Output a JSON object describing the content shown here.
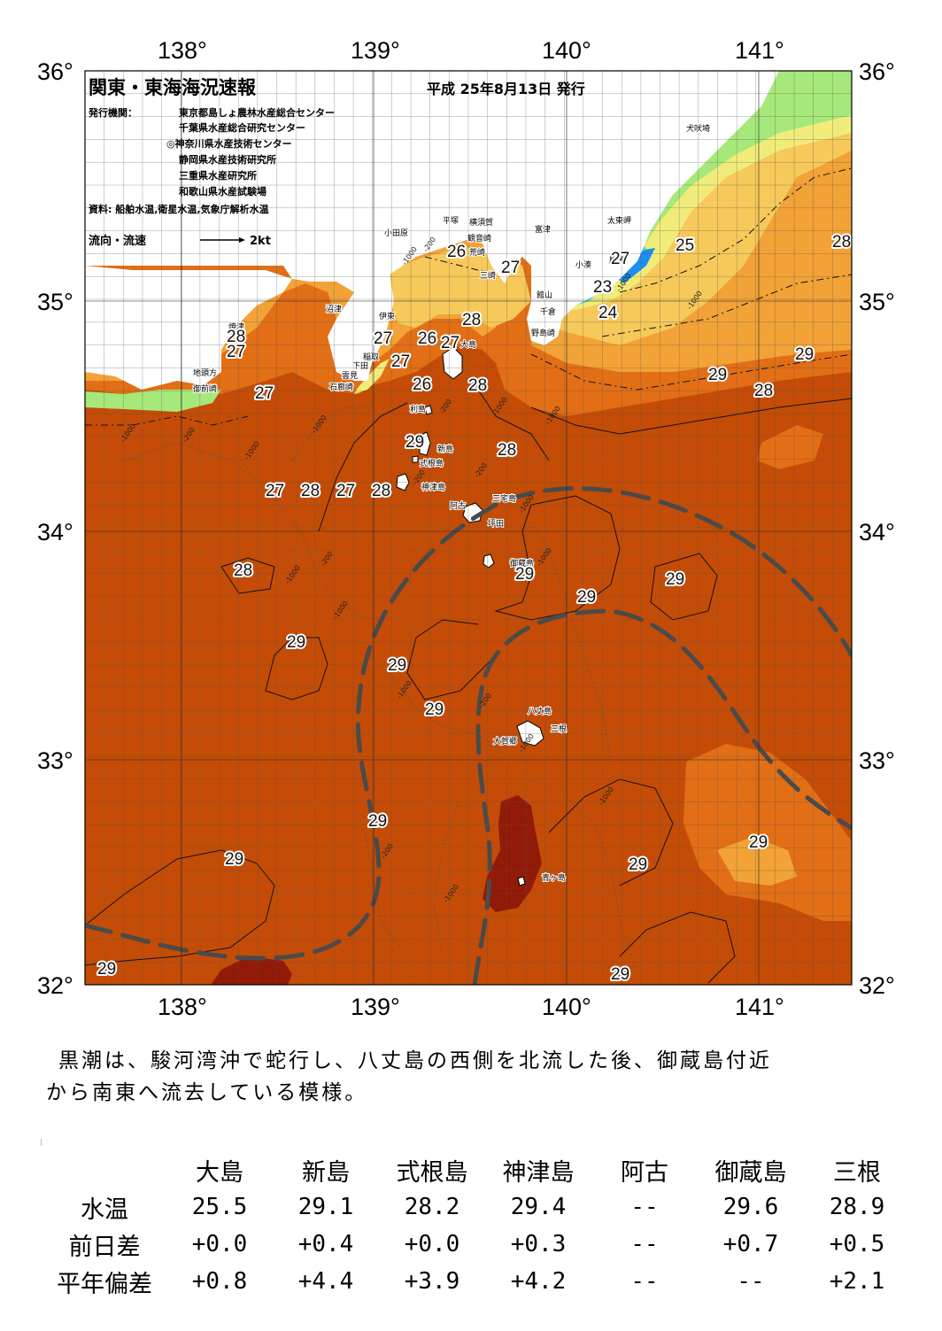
{
  "header": {
    "title": "関東・東海海況速報",
    "issue_date": "平成 25年8月13日 発行",
    "org_label": "発行機関：",
    "orgs": [
      "東京都島しょ農林水産総合センター",
      "千葉県水産総合研究センター",
      "◎神奈川県水産技術センター",
      "静岡県水産技術研究所",
      "三重県水産研究所",
      "和歌山県水産試験場"
    ],
    "source": "資料: 船舶水温,衛星水温,気象庁解析水温",
    "current_legend": "流向・流速",
    "current_scale": "2kt"
  },
  "map": {
    "lon_labels": [
      "138°",
      "139°",
      "140°",
      "141°"
    ],
    "lat_labels": [
      "36°",
      "35°",
      "34°",
      "33°",
      "32°"
    ],
    "colors": {
      "water_29": "#c44c06",
      "water_28": "#e26e15",
      "water_27": "#f2a236",
      "water_26": "#f6c95a",
      "water_25": "#f1ec7a",
      "water_24": "#a6e87a",
      "water_23": "#45d3d0",
      "water_22": "#1c8ff0",
      "water_30": "#921a08",
      "land": "#ffffff",
      "kuroshio_axis": "#4a4a4a"
    },
    "isotherm_labels": [
      "26",
      "27",
      "27",
      "23",
      "24",
      "25",
      "26",
      "27",
      "28",
      "27",
      "27",
      "26",
      "27",
      "28",
      "29",
      "28",
      "28",
      "29",
      "29",
      "29",
      "29",
      "29",
      "29",
      "29",
      "29",
      "29",
      "29",
      "29",
      "29",
      "29",
      "28",
      "29",
      "28",
      "27",
      "28",
      "27",
      "28",
      "27",
      "28"
    ],
    "depth_labels": [
      "-1000",
      "-200",
      "-1000",
      "-200",
      "-1000",
      "-1000",
      "-200",
      "-1000",
      "-200",
      "-1000",
      "-200",
      "-1000",
      "-200",
      "-1000",
      "-200",
      "-1000",
      "-1000",
      "-1000",
      "-1000",
      "-200",
      "-1000",
      "-1000",
      "-1000",
      "-1000"
    ],
    "places": [
      "犬吠埼",
      "太東岬",
      "小田原",
      "平塚",
      "横須賀",
      "観音崎",
      "富津",
      "荒崎",
      "三崎",
      "小湊",
      "勝浦",
      "館山",
      "千倉",
      "野島崎",
      "沼津",
      "伊東",
      "大島",
      "稲取",
      "下田",
      "雲見",
      "石廊崎",
      "焼津",
      "御前崎",
      "地頭方",
      "利島",
      "新島",
      "式根島",
      "神津島",
      "三宅島",
      "阿古",
      "坪田",
      "御蔵島",
      "八丈島",
      "三根",
      "大賀郷",
      "青ヶ島"
    ]
  },
  "summary": {
    "line1": "黒潮は、駿河湾沖で蛇行し、八丈島の西側を北流した後、御蔵島付近",
    "line2": "から南東へ流去している模様。"
  },
  "table": {
    "columns": [
      "大島",
      "新島",
      "式根島",
      "神津島",
      "阿古",
      "御蔵島",
      "三根"
    ],
    "rows": [
      {
        "label": "水温",
        "values": [
          "25.5",
          "29.1",
          "28.2",
          "29.4",
          "--",
          "29.6",
          "28.9"
        ]
      },
      {
        "label": "前日差",
        "values": [
          "+0.0",
          "+0.4",
          "+0.0",
          "+0.3",
          "--",
          "+0.7",
          "+0.5"
        ]
      },
      {
        "label": "平年偏差",
        "values": [
          "+0.8",
          "+4.4",
          "+3.9",
          "+4.2",
          "--",
          "--",
          "+2.1"
        ]
      }
    ]
  }
}
